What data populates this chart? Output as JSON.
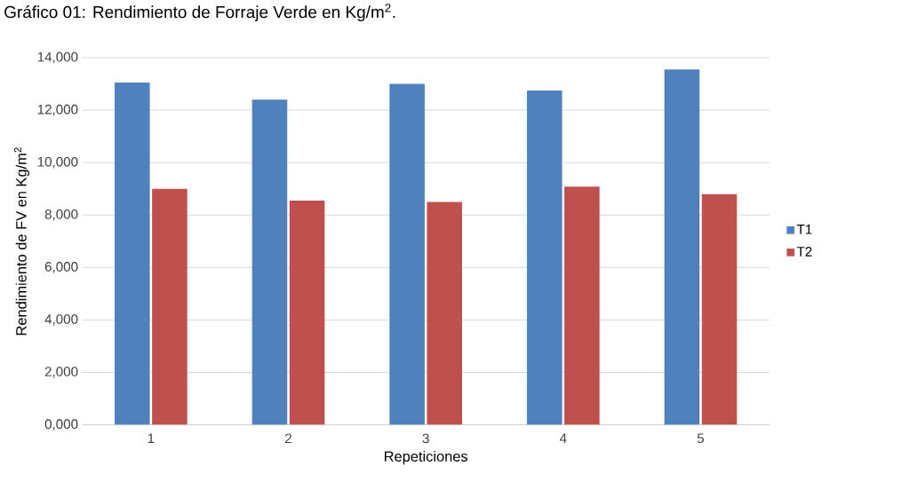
{
  "chart_data": {
    "type": "bar",
    "title": "Gráfico 01: Rendimiento de Forraje Verde en Kg/m$^{2}$.",
    "xlabel": "Repeticiones",
    "ylabel": "Rendimiento de FV en Kg/m$^{2}$",
    "categories": [
      "1",
      "2",
      "3",
      "4",
      "5"
    ],
    "series": [
      {
        "name": "T1",
        "color": "#4f81bd",
        "values": [
          13050,
          12400,
          13000,
          12750,
          13550
        ]
      },
      {
        "name": "T2",
        "color": "#c0504d",
        "values": [
          9000,
          8550,
          8500,
          9080,
          8800
        ]
      }
    ],
    "ylim": [
      0,
      14000
    ],
    "yticks": [
      {
        "value": 0,
        "label": "0,000"
      },
      {
        "value": 2000,
        "label": "2,000"
      },
      {
        "value": 4000,
        "label": "4,000"
      },
      {
        "value": 6000,
        "label": "6,000"
      },
      {
        "value": 8000,
        "label": "8,000"
      },
      {
        "value": 10000,
        "label": "10,000"
      },
      {
        "value": 12000,
        "label": "12,000"
      },
      {
        "value": 14000,
        "label": "14,000"
      }
    ],
    "grid": "y",
    "legend": "right"
  }
}
